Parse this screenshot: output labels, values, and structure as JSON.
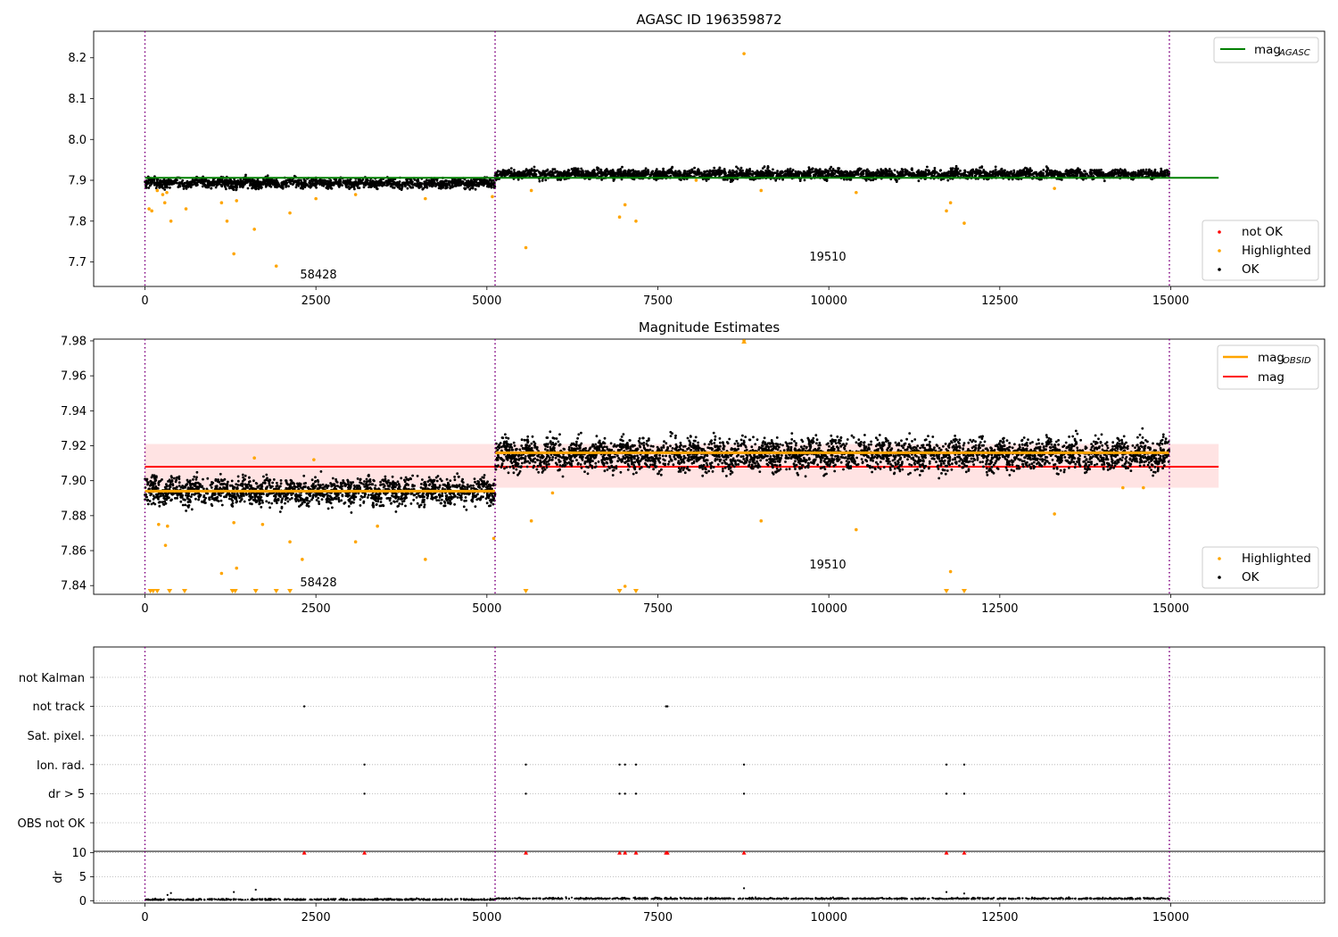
{
  "chart_data": [
    {
      "id": "agasc",
      "type": "scatter",
      "title": "AGASC ID 196359872",
      "xlim": [
        -750,
        17250
      ],
      "ylim": [
        7.64,
        8.265
      ],
      "xticks": [
        0,
        2500,
        5000,
        7500,
        10000,
        12500,
        15000
      ],
      "xtick_labels": [
        "0",
        "2500",
        "5000",
        "7500",
        "10000",
        "12500",
        "15000"
      ],
      "yticks": [
        7.7,
        7.8,
        7.9,
        8.0,
        8.1,
        8.2
      ],
      "ytick_labels": [
        "7.7",
        "7.8",
        "7.9",
        "8.0",
        "8.1",
        "8.2"
      ],
      "obsid_boundaries": [
        0,
        5120,
        14980
      ],
      "obsid_labels": [
        {
          "text": "58428",
          "x": 2560,
          "y": 7.66
        },
        {
          "text": "19510",
          "x": 10050,
          "y": 7.705
        }
      ],
      "lines": [
        {
          "name": "mag_AGASC",
          "color": "#008000",
          "x": [
            0,
            15700
          ],
          "y": [
            7.906,
            7.906
          ]
        }
      ],
      "ok_bands": [
        {
          "x": [
            0,
            5120
          ],
          "center": 7.893,
          "spread": 0.012
        },
        {
          "x": [
            5120,
            14980
          ],
          "center": 7.915,
          "spread": 0.012
        }
      ],
      "highlighted_points": {
        "x": [
          60,
          100,
          180,
          260,
          290,
          320,
          380,
          600,
          1120,
          1200,
          1300,
          1340,
          1600,
          1920,
          2120,
          2500,
          3080,
          4100,
          5080,
          5570,
          5650,
          6940,
          7020,
          7180,
          8060,
          8760,
          9010,
          10400,
          11720,
          11780,
          11980,
          13300
        ],
        "y": [
          7.83,
          7.825,
          7.875,
          7.865,
          7.845,
          7.87,
          7.8,
          7.83,
          7.845,
          7.8,
          7.72,
          7.85,
          7.78,
          7.69,
          7.82,
          7.855,
          7.865,
          7.855,
          7.86,
          7.735,
          7.875,
          7.81,
          7.84,
          7.8,
          7.9,
          8.21,
          7.875,
          7.87,
          7.825,
          7.845,
          7.795,
          7.88
        ]
      },
      "legends": [
        {
          "position": "top-right",
          "entries": [
            {
              "label": "mag",
              "sub": "AGASC",
              "color": "#008000",
              "marker": "line"
            }
          ]
        },
        {
          "position": "lower-right",
          "entries": [
            {
              "label": "not OK",
              "color": "#ff0000",
              "marker": "dot"
            },
            {
              "label": "Highlighted",
              "color": "#ffa500",
              "marker": "dot"
            },
            {
              "label": "OK",
              "color": "#000000",
              "marker": "dot"
            }
          ]
        }
      ]
    },
    {
      "id": "estimates",
      "type": "scatter",
      "title": "Magnitude Estimates",
      "xlim": [
        -750,
        17250
      ],
      "ylim": [
        7.835,
        7.981
      ],
      "xticks": [
        0,
        2500,
        5000,
        7500,
        10000,
        12500,
        15000
      ],
      "xtick_labels": [
        "0",
        "2500",
        "5000",
        "7500",
        "10000",
        "12500",
        "15000"
      ],
      "yticks": [
        7.84,
        7.86,
        7.88,
        7.9,
        7.92,
        7.94,
        7.96,
        7.98
      ],
      "ytick_labels": [
        "7.84",
        "7.86",
        "7.88",
        "7.90",
        "7.92",
        "7.94",
        "7.96",
        "7.98"
      ],
      "obsid_boundaries": [
        0,
        5120,
        14980
      ],
      "obsid_labels": [
        {
          "text": "58428",
          "x": 2560,
          "y": 7.84
        },
        {
          "text": "19510",
          "x": 10050,
          "y": 7.851
        }
      ],
      "band": {
        "x": [
          0,
          15700
        ],
        "y": [
          7.896,
          7.921
        ],
        "color": "#ffcccc"
      },
      "lines": [
        {
          "name": "mag",
          "color": "#ff0000",
          "x": [
            0,
            15700
          ],
          "y": [
            7.908,
            7.908
          ]
        },
        {
          "name": "mag_OBSID_58428",
          "color": "#ffa500",
          "x": [
            0,
            5120
          ],
          "y": [
            7.894,
            7.894
          ]
        },
        {
          "name": "mag_OBSID_19510",
          "color": "#ffa500",
          "x": [
            5120,
            14980
          ],
          "y": [
            7.916,
            7.916
          ]
        }
      ],
      "ok_bands": [
        {
          "x": [
            0,
            5120
          ],
          "center": 7.894,
          "spread": 0.008
        },
        {
          "x": [
            5120,
            14980
          ],
          "center": 7.915,
          "spread": 0.009
        }
      ],
      "highlighted_points": {
        "x": [
          200,
          300,
          330,
          1120,
          1300,
          1340,
          1600,
          1720,
          2120,
          2300,
          2470,
          3080,
          3400,
          4100,
          5100,
          5650,
          5960,
          8760,
          9010,
          10400,
          11780,
          13300,
          14300,
          14600
        ],
        "y": [
          7.875,
          7.863,
          7.874,
          7.847,
          7.876,
          7.85,
          7.913,
          7.875,
          7.865,
          7.855,
          7.912,
          7.865,
          7.874,
          7.855,
          7.867,
          7.877,
          7.893,
          7.98,
          7.877,
          7.872,
          7.848,
          7.881,
          7.896,
          7.896
        ]
      },
      "clipped_low_x": [
        80,
        120,
        180,
        360,
        580,
        1280,
        1320,
        1620,
        1920,
        2120,
        5570,
        6940,
        7180,
        11720,
        11980
      ],
      "clipped_low_2_x": [
        7020
      ],
      "legends": [
        {
          "position": "top-right",
          "entries": [
            {
              "label": "mag",
              "sub": "OBSID",
              "color": "#ffa500",
              "marker": "line"
            },
            {
              "label": "mag",
              "sub": "",
              "color": "#ff0000",
              "marker": "line"
            }
          ]
        },
        {
          "position": "lower-right",
          "entries": [
            {
              "label": "Highlighted",
              "color": "#ffa500",
              "marker": "dot"
            },
            {
              "label": "OK",
              "color": "#000000",
              "marker": "dot"
            }
          ]
        }
      ]
    },
    {
      "id": "flags",
      "type": "scatter",
      "xlim": [
        -750,
        17250
      ],
      "categories": [
        "not Kalman",
        "not track",
        "Sat. pixel.",
        "Ion. rad.",
        "dr > 5",
        "OBS not OK"
      ],
      "obsid_boundaries": [
        0,
        5120,
        14980
      ],
      "flag_points": [
        {
          "category": "not track",
          "x": [
            2330,
            7620,
            7640
          ]
        },
        {
          "category": "Ion. rad.",
          "x": [
            3210,
            5570,
            6940,
            7020,
            7180,
            8760,
            11720,
            11980
          ]
        },
        {
          "category": "dr > 5",
          "x": [
            3210,
            5570,
            6940,
            7020,
            7180,
            8760,
            11720,
            11980
          ]
        }
      ]
    },
    {
      "id": "dr",
      "type": "scatter",
      "ylabel": "dr",
      "xlim": [
        -750,
        17250
      ],
      "ylim": [
        -0.5,
        10.3
      ],
      "xticks": [
        0,
        2500,
        5000,
        7500,
        10000,
        12500,
        15000
      ],
      "xtick_labels": [
        "0",
        "2500",
        "5000",
        "7500",
        "10000",
        "12500",
        "15000"
      ],
      "yticks": [
        0,
        5,
        10
      ],
      "ytick_labels": [
        "0",
        "5",
        "10"
      ],
      "obsid_boundaries": [
        0,
        5120,
        14980
      ],
      "capped_points": {
        "x": [
          2330,
          3210,
          5570,
          6940,
          7020,
          7180,
          7620,
          7640,
          8760,
          11720,
          11980
        ],
        "y": [
          10,
          10,
          10,
          10,
          10,
          10,
          10,
          10,
          10,
          10,
          10
        ]
      },
      "outlier_points": {
        "x": [
          330,
          380,
          1300,
          1620,
          8760,
          11720,
          11980
        ],
        "y": [
          1.2,
          1.6,
          1.8,
          2.3,
          2.6,
          1.8,
          1.5
        ]
      }
    }
  ],
  "colors": {
    "ok": "#000000",
    "highlighted": "#ffa500",
    "not_ok": "#ff0000",
    "boundary": "#800080",
    "band": "#ffcccc",
    "grid": "#b0b0b0"
  }
}
